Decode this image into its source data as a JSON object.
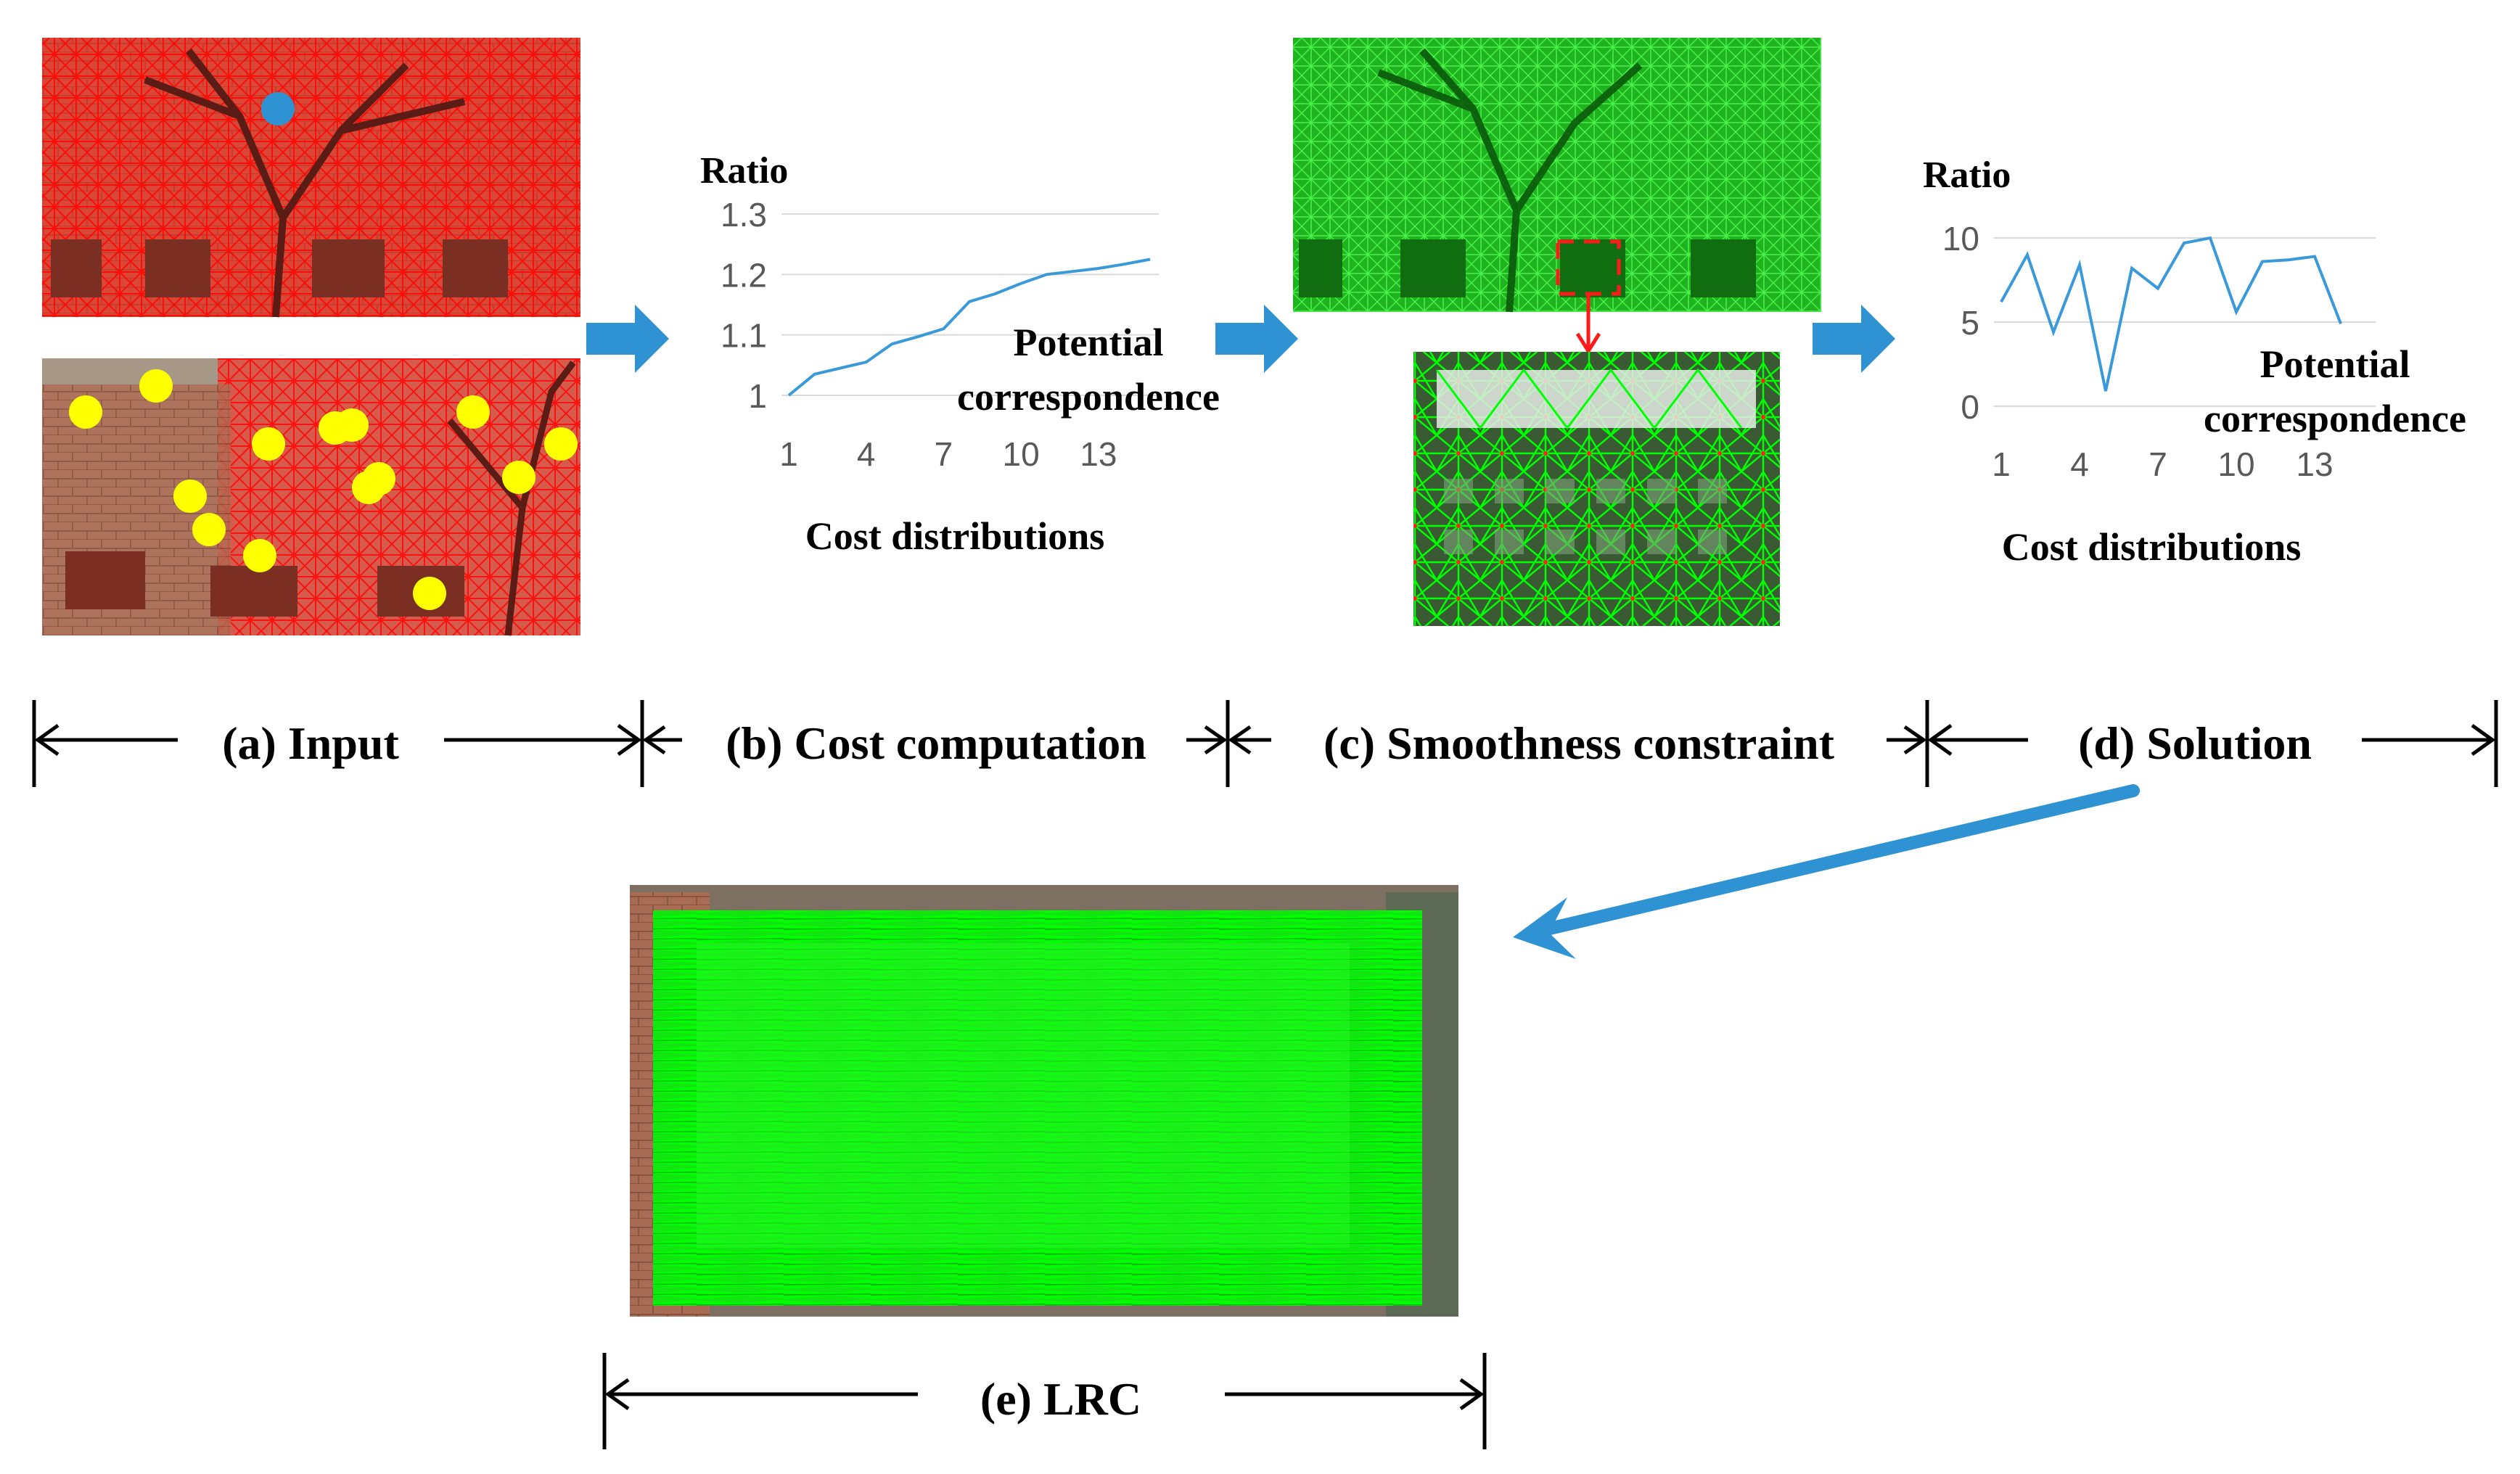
{
  "colors": {
    "arrow_blue": "#2f93d3",
    "chart_line": "#3a9ad9",
    "grid": "#d9d9d9",
    "tick_text": "#595959",
    "match_green": "#00ff00",
    "feature_red": "#ff0000",
    "keypoint_yellow": "#ffff00",
    "keypoint_blue": "#2f93d3",
    "brick": "#b06a52"
  },
  "stages": {
    "a": "(a) Input",
    "b": "(b) Cost computation",
    "c": "(c) Smoothness constraint",
    "d": "(d) Solution",
    "e": "(e) LRC"
  },
  "chart_data": [
    {
      "type": "line",
      "ylabel": "Ratio",
      "xlabel": "Cost distributions",
      "annotation": [
        "Potential",
        "correspondence"
      ],
      "x": [
        1,
        2,
        3,
        4,
        5,
        6,
        7,
        8,
        9,
        10,
        11,
        12,
        13,
        14,
        15
      ],
      "xticks": [
        "1",
        "4",
        "7",
        "10",
        "13"
      ],
      "xtick_values": [
        1,
        4,
        7,
        10,
        13
      ],
      "yticks": [
        "1.3",
        "1.2",
        "1.1",
        "1"
      ],
      "ytick_values": [
        1.3,
        1.2,
        1.1,
        1.0
      ],
      "ylim": [
        1.0,
        1.3
      ],
      "grid": true,
      "values": [
        1.0,
        1.035,
        1.045,
        1.055,
        1.085,
        1.097,
        1.11,
        1.155,
        1.168,
        1.185,
        1.2,
        1.205,
        1.21,
        1.217,
        1.225
      ]
    },
    {
      "type": "line",
      "ylabel": "Ratio",
      "xlabel": "Cost distributions",
      "annotation": [
        "Potential",
        "correspondence"
      ],
      "x": [
        1,
        2,
        3,
        4,
        5,
        6,
        7,
        8,
        9,
        10,
        11,
        12,
        13,
        14,
        15
      ],
      "xticks": [
        "1",
        "4",
        "7",
        "10",
        "13"
      ],
      "xtick_values": [
        1,
        4,
        7,
        10,
        13
      ],
      "yticks": [
        "10",
        "5",
        "0"
      ],
      "ytick_values": [
        10,
        5,
        0
      ],
      "ylim": [
        0,
        10
      ],
      "grid": true,
      "values": [
        6.2,
        9.0,
        4.4,
        8.4,
        0.9,
        8.2,
        7.0,
        9.7,
        10.0,
        5.6,
        8.6,
        8.7,
        8.9,
        4.9,
        null
      ]
    }
  ]
}
